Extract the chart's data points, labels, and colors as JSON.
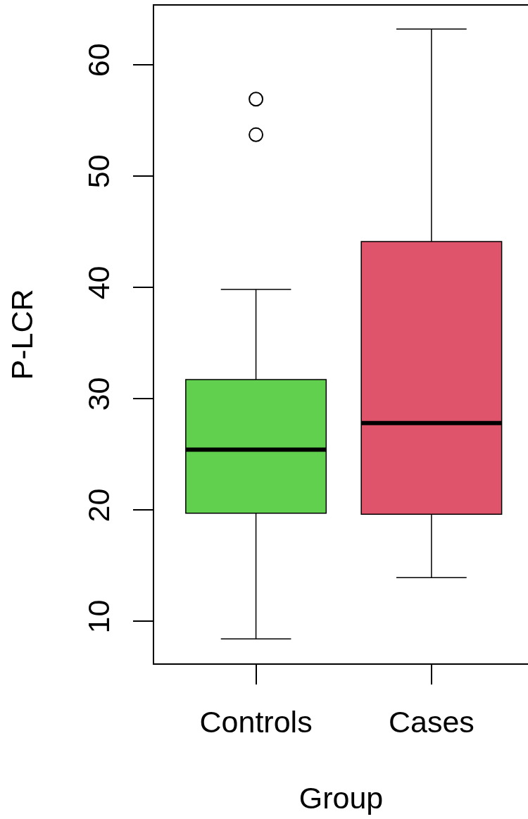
{
  "chart_data": {
    "type": "box",
    "xlabel": "Group",
    "ylabel": "P-LCR",
    "categories": [
      "Controls",
      "Cases"
    ],
    "boxes": [
      {
        "low": 8.4,
        "q1": 19.7,
        "median": 25.4,
        "q3": 31.7,
        "high": 39.8,
        "outliers": [
          56.9,
          53.7
        ]
      },
      {
        "low": 13.9,
        "q1": 19.6,
        "median": 27.8,
        "q3": 44.1,
        "high": 63.2
      }
    ],
    "colors": [
      "#61d04f",
      "#df536b"
    ],
    "ylim": [
      6.2,
      65.3
    ],
    "yticks": [
      10,
      20,
      30,
      40,
      50,
      60
    ],
    "grid": false,
    "marker": "circle"
  }
}
